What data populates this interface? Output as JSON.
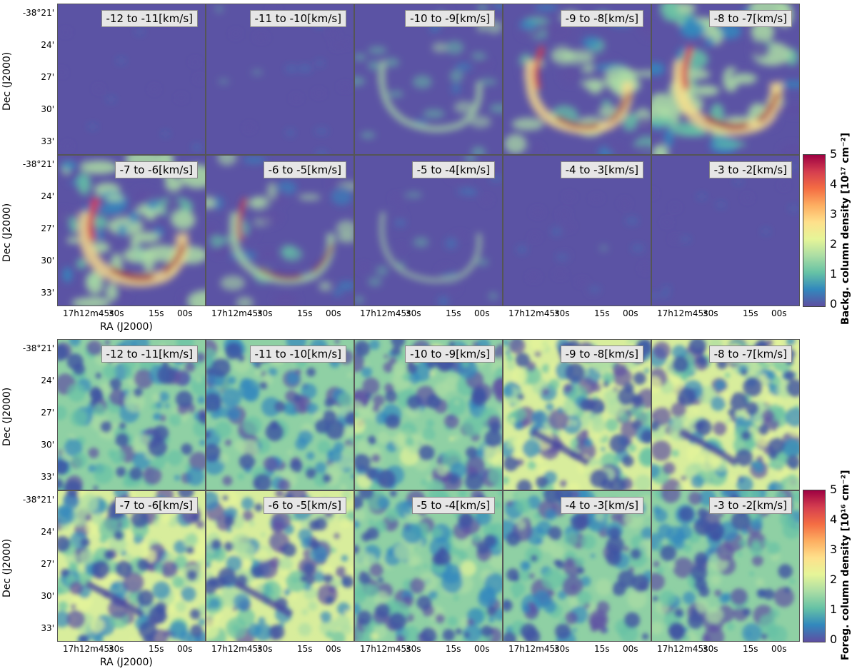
{
  "figure": {
    "top": {
      "colorbar_title": "Backg. column density [10¹⁷ cm⁻²]",
      "colorbar_ticks": [
        "5",
        "4",
        "3",
        "2",
        "1",
        "0"
      ],
      "panels": [
        "-12 to -11[km/s]",
        "-11 to -10[km/s]",
        "-10 to -9[km/s]",
        "-9 to -8[km/s]",
        "-8 to -7[km/s]",
        "-7 to -6[km/s]",
        "-6 to -5[km/s]",
        "-5 to -4[km/s]",
        "-4 to -3[km/s]",
        "-3 to -2[km/s]"
      ],
      "structure_strength": [
        0.05,
        0.15,
        0.45,
        0.8,
        1.0,
        1.0,
        0.6,
        0.3,
        0.15,
        0.05
      ]
    },
    "bottom": {
      "colorbar_title": "Foreg. column density [10¹⁶ cm⁻²]",
      "colorbar_ticks": [
        "5",
        "4",
        "3",
        "2",
        "1",
        "0"
      ],
      "panels": [
        "-12 to -11[km/s]",
        "-11 to -10[km/s]",
        "-10 to -9[km/s]",
        "-9 to -8[km/s]",
        "-8 to -7[km/s]",
        "-7 to -6[km/s]",
        "-6 to -5[km/s]",
        "-5 to -4[km/s]",
        "-4 to -3[km/s]",
        "-3 to -2[km/s]"
      ],
      "structure_strength": [
        0.45,
        0.5,
        0.6,
        0.75,
        0.8,
        0.75,
        0.65,
        0.55,
        0.35,
        0.3
      ]
    },
    "dec_ticks": [
      "-38°21'",
      "24'",
      "27'",
      "30'",
      "33'"
    ],
    "ra_ticks": [
      "17h12m45s",
      "30s",
      "15s",
      "00s"
    ],
    "ra_label": "RA (J2000)",
    "dec_label": "Dec (J2000)",
    "colormap": [
      "#5e4fa2",
      "#3288bd",
      "#66c2a5",
      "#abdda4",
      "#e6f598",
      "#fee08b",
      "#fdae61",
      "#f46d43",
      "#d53e4f",
      "#9e0142"
    ]
  }
}
